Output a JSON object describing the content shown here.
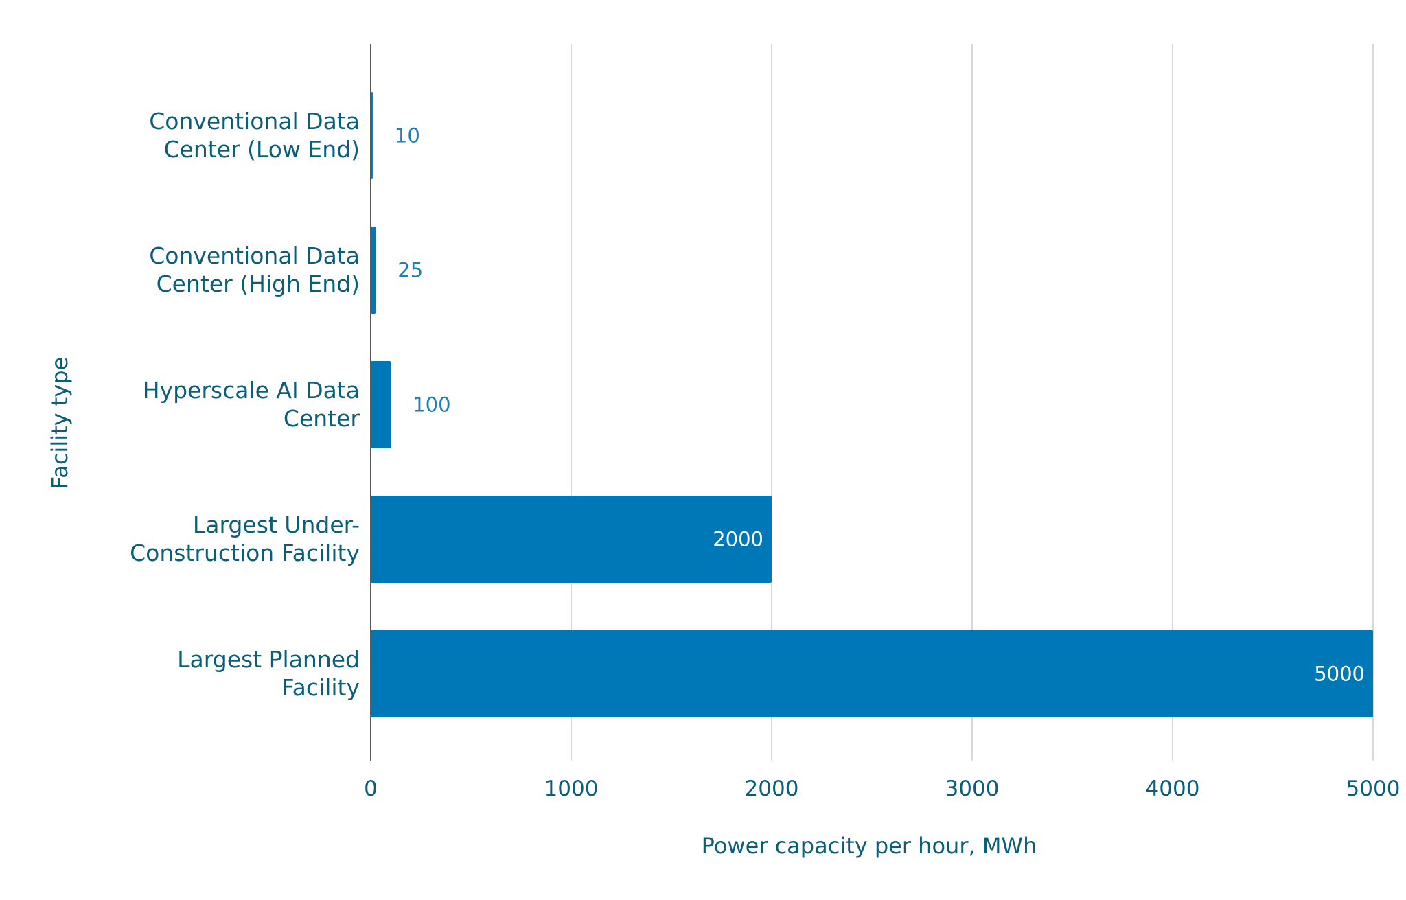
{
  "chart_data": {
    "type": "bar",
    "orientation": "horizontal",
    "categories": [
      [
        "Conventional Data",
        "Center (Low End)"
      ],
      [
        "Conventional Data",
        "Center (High End)"
      ],
      [
        "Hyperscale AI Data",
        "Center"
      ],
      [
        "Largest Under-",
        "Construction Facility"
      ],
      [
        "Largest Planned",
        "Facility"
      ]
    ],
    "values": [
      10,
      25,
      100,
      2000,
      5000
    ],
    "value_labels": [
      "10",
      "25",
      "100",
      "2000",
      "5000"
    ],
    "xticks": [
      0,
      1000,
      2000,
      3000,
      4000,
      5000
    ],
    "xtick_labels": [
      "0",
      "1000",
      "2000",
      "3000",
      "4000",
      "5000"
    ],
    "xlim": [
      0,
      5000
    ],
    "xlabel": "Power capacity per hour, MWh",
    "ylabel": "Facility type",
    "title": "",
    "grid": "vertical",
    "bar_color": "#0077b6",
    "outside_label_color": "#1d7fb5",
    "inside_label_color": "#ffffff",
    "text_color": "#0b5e7a"
  }
}
